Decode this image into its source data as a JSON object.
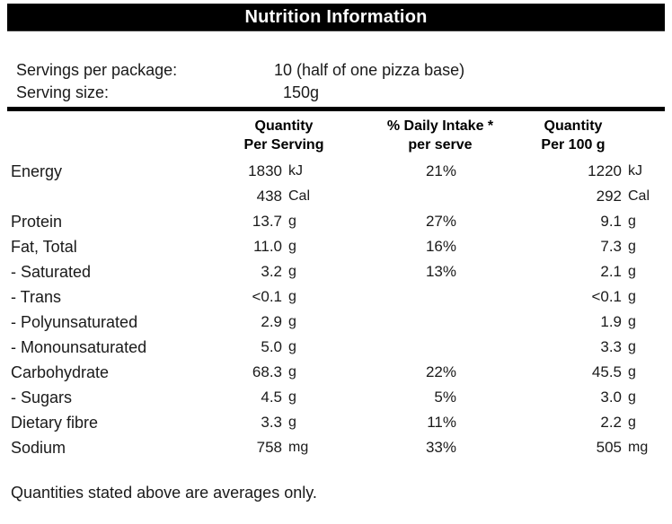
{
  "title": "Nutrition Information",
  "serving_info": {
    "rows": [
      {
        "label": "Servings per package:",
        "value": "10 (half of one pizza base)"
      },
      {
        "label": "Serving size:",
        "value": "150g"
      }
    ]
  },
  "table": {
    "columns": {
      "per_serving": {
        "line1": "Quantity",
        "line2": "Per Serving"
      },
      "daily_intake": {
        "line1": "% Daily Intake *",
        "line2": "per serve"
      },
      "per_100g": {
        "line1": "Quantity",
        "line2": "Per 100 g"
      }
    },
    "rows": [
      {
        "label": "Energy",
        "per_serving": "1830",
        "per_serving_unit": "kJ",
        "daily_intake": "21%",
        "per_100g": "1220",
        "per_100g_unit": "kJ"
      },
      {
        "label": "",
        "per_serving": "438",
        "per_serving_unit": "Cal",
        "daily_intake": "",
        "per_100g": "292",
        "per_100g_unit": "Cal"
      },
      {
        "label": "Protein",
        "per_serving": "13.7",
        "per_serving_unit": "g",
        "daily_intake": "27%",
        "per_100g": "9.1",
        "per_100g_unit": "g"
      },
      {
        "label": "Fat, Total",
        "per_serving": "11.0",
        "per_serving_unit": "g",
        "daily_intake": "16%",
        "per_100g": "7.3",
        "per_100g_unit": "g"
      },
      {
        "label": "- Saturated",
        "per_serving": "3.2",
        "per_serving_unit": "g",
        "daily_intake": "13%",
        "per_100g": "2.1",
        "per_100g_unit": "g"
      },
      {
        "label": "- Trans",
        "per_serving": "<0.1",
        "per_serving_unit": "g",
        "daily_intake": "",
        "per_100g": "<0.1",
        "per_100g_unit": "g"
      },
      {
        "label": "- Polyunsaturated",
        "per_serving": "2.9",
        "per_serving_unit": "g",
        "daily_intake": "",
        "per_100g": "1.9",
        "per_100g_unit": "g"
      },
      {
        "label": "- Monounsaturated",
        "per_serving": "5.0",
        "per_serving_unit": "g",
        "daily_intake": "",
        "per_100g": "3.3",
        "per_100g_unit": "g"
      },
      {
        "label": "Carbohydrate",
        "per_serving": "68.3",
        "per_serving_unit": "g",
        "daily_intake": "22%",
        "per_100g": "45.5",
        "per_100g_unit": "g"
      },
      {
        "label": "- Sugars",
        "per_serving": "4.5",
        "per_serving_unit": "g",
        "daily_intake": "5%",
        "per_100g": "3.0",
        "per_100g_unit": "g"
      },
      {
        "label": "Dietary fibre",
        "per_serving": "3.3",
        "per_serving_unit": "g",
        "daily_intake": "11%",
        "per_100g": "2.2",
        "per_100g_unit": "g"
      },
      {
        "label": "Sodium",
        "per_serving": "758",
        "per_serving_unit": "mg",
        "daily_intake": "33%",
        "per_100g": "505",
        "per_100g_unit": "mg"
      }
    ]
  },
  "footer": {
    "note": "Quantities stated above are averages only."
  },
  "colors": {
    "header_bg": "#000000",
    "header_text": "#ffffff",
    "body_text": "#1a1a1a",
    "rule": "#000000",
    "background": "#ffffff"
  }
}
